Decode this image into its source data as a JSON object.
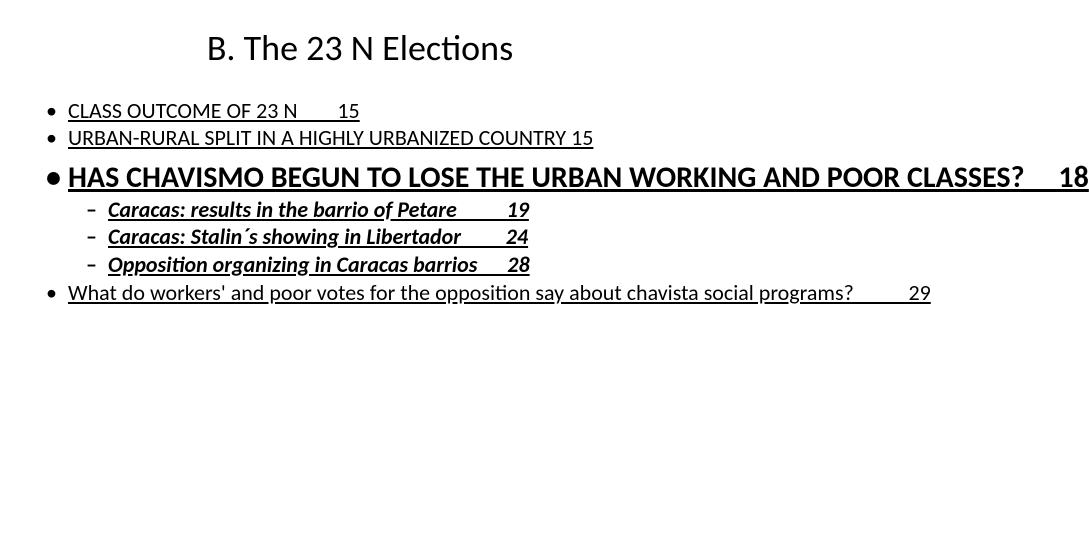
{
  "title": "B. The 23 N Elections",
  "items": {
    "a": "CLASS OUTCOME OF 23 N        15",
    "b": "URBAN-RURAL SPLIT IN A HIGHLY URBANIZED COUNTRY 15",
    "c": "HAS CHAVISMO BEGUN TO LOSE THE URBAN WORKING AND POOR CLASSES?     18",
    "d": "What do workers' and poor votes for the opposition say about chavista social programs?           29"
  },
  "sub": {
    "s1": "Caracas: results in the barrio of Petare          19",
    "s2": "Caracas: Stalin´s showing in Libertador         24",
    "s3": "Opposition organizing in Caracas barrios      28"
  },
  "style": {
    "title_fontsize": 36,
    "small_fontsize": 22,
    "big_fontsize": 30,
    "sub_fontsize": 22,
    "text_color": "#000000",
    "background": "#ffffff"
  }
}
